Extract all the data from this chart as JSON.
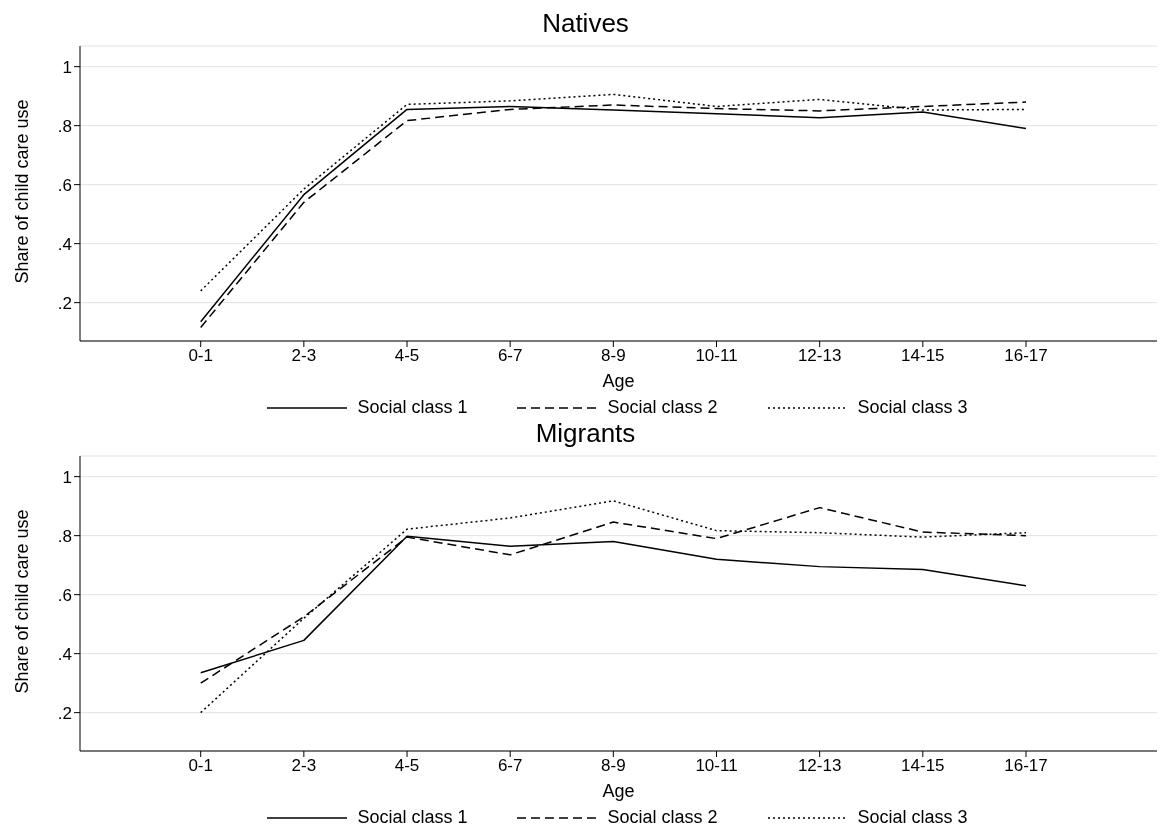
{
  "chart_data": [
    {
      "type": "line",
      "title": "Natives",
      "xlabel": "Age",
      "ylabel": "Share of child care use",
      "categories": [
        "0-1",
        "2-3",
        "4-5",
        "6-7",
        "8-9",
        "10-11",
        "12-13",
        "14-15",
        "16-17"
      ],
      "series": [
        {
          "name": "Social class 1",
          "color": "#000000",
          "line_style": "solid",
          "values": [
            0.135,
            0.566,
            0.855,
            0.865,
            0.853,
            0.84,
            0.827,
            0.846,
            0.79
          ]
        },
        {
          "name": "Social class 2",
          "color": "#000000",
          "line_style": "dashed",
          "values": [
            0.116,
            0.54,
            0.817,
            0.855,
            0.87,
            0.858,
            0.85,
            0.865,
            0.88
          ]
        },
        {
          "name": "Social class 3",
          "color": "#000000",
          "line_style": "dotted",
          "values": [
            0.24,
            0.585,
            0.872,
            0.884,
            0.906,
            0.865,
            0.889,
            0.853,
            0.855
          ]
        }
      ],
      "ylim": [
        0.07,
        1.07
      ],
      "yticks": [
        {
          "value": 0.2,
          "label": ".2"
        },
        {
          "value": 0.4,
          "label": ".4"
        },
        {
          "value": 0.6,
          "label": ".6"
        },
        {
          "value": 0.8,
          "label": ".8"
        },
        1
      ],
      "grid": "y",
      "legend": "bottom",
      "marker": "none"
    },
    {
      "type": "line",
      "title": "Migrants",
      "xlabel": "Age",
      "ylabel": "Share of child care use",
      "categories": [
        "0-1",
        "2-3",
        "4-5",
        "6-7",
        "8-9",
        "10-11",
        "12-13",
        "14-15",
        "16-17"
      ],
      "series": [
        {
          "name": "Social class 1",
          "color": "#000000",
          "line_style": "solid",
          "values": [
            0.335,
            0.445,
            0.798,
            0.764,
            0.78,
            0.72,
            0.695,
            0.685,
            0.63
          ]
        },
        {
          "name": "Social class 2",
          "color": "#000000",
          "line_style": "dashed",
          "values": [
            0.3,
            0.525,
            0.795,
            0.735,
            0.846,
            0.79,
            0.895,
            0.812,
            0.8
          ]
        },
        {
          "name": "Social class 3",
          "color": "#000000",
          "line_style": "dotted",
          "values": [
            0.2,
            0.52,
            0.822,
            0.86,
            0.918,
            0.817,
            0.81,
            0.795,
            0.81
          ]
        }
      ],
      "ylim": [
        0.07,
        1.07
      ],
      "yticks": [
        {
          "value": 0.2,
          "label": ".2"
        },
        {
          "value": 0.4,
          "label": ".4"
        },
        {
          "value": 0.6,
          "label": ".6"
        },
        {
          "value": 0.8,
          "label": ".8"
        },
        1
      ],
      "grid": "y",
      "legend": "bottom",
      "marker": "none"
    }
  ]
}
